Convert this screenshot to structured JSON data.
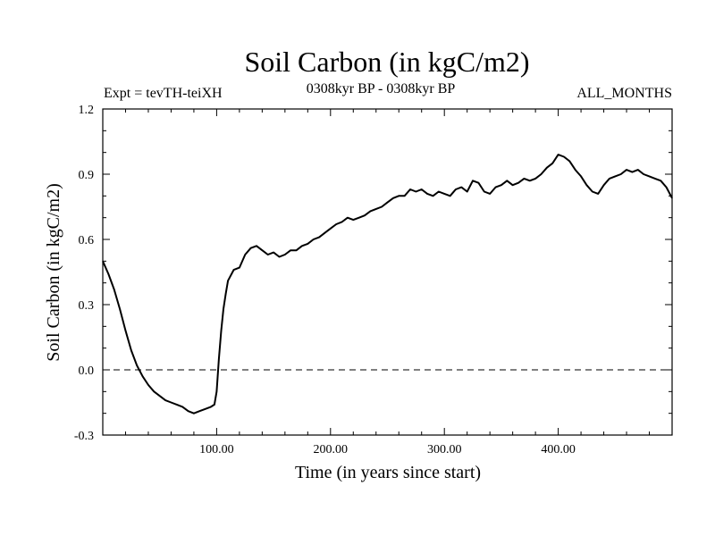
{
  "chart_data": {
    "type": "line",
    "title": "Soil Carbon (in kgC/m2)",
    "subtitle_left": "Expt = tevTH-teiXH",
    "subtitle_center": "0308kyr BP - 0308kyr BP",
    "subtitle_right": "ALL_MONTHS",
    "xlabel": "Time (in years since start)",
    "ylabel": "Soil Carbon (in kgC/m2)",
    "xlim": [
      0,
      500
    ],
    "ylim": [
      -0.3,
      1.2
    ],
    "x_ticks": [
      100,
      200,
      300,
      400
    ],
    "x_tick_labels": [
      "100.00",
      "200.00",
      "300.00",
      "400.00"
    ],
    "y_ticks": [
      -0.3,
      0.0,
      0.3,
      0.6,
      0.9,
      1.2
    ],
    "y_tick_labels": [
      "-0.3",
      "0.0",
      "0.3",
      "0.6",
      "0.9",
      "1.2"
    ],
    "zero_line": 0.0,
    "series": [
      {
        "name": "Soil Carbon",
        "color": "#000000",
        "x": [
          0,
          5,
          10,
          15,
          20,
          25,
          30,
          35,
          40,
          45,
          50,
          55,
          60,
          65,
          70,
          75,
          80,
          85,
          90,
          95,
          98,
          100,
          102,
          104,
          106,
          108,
          110,
          115,
          120,
          125,
          130,
          135,
          140,
          145,
          150,
          155,
          160,
          165,
          170,
          175,
          180,
          185,
          190,
          195,
          200,
          205,
          210,
          215,
          220,
          225,
          230,
          235,
          240,
          245,
          250,
          255,
          260,
          265,
          270,
          275,
          280,
          285,
          290,
          295,
          300,
          305,
          310,
          315,
          320,
          325,
          330,
          335,
          340,
          345,
          350,
          355,
          360,
          365,
          370,
          375,
          380,
          385,
          390,
          395,
          400,
          405,
          410,
          415,
          420,
          425,
          430,
          435,
          440,
          445,
          450,
          455,
          460,
          465,
          470,
          475,
          480,
          485,
          490,
          495,
          500
        ],
        "values": [
          0.5,
          0.44,
          0.37,
          0.28,
          0.18,
          0.09,
          0.02,
          -0.03,
          -0.07,
          -0.1,
          -0.12,
          -0.14,
          -0.15,
          -0.16,
          -0.17,
          -0.19,
          -0.2,
          -0.19,
          -0.18,
          -0.17,
          -0.16,
          -0.1,
          0.05,
          0.18,
          0.28,
          0.35,
          0.41,
          0.46,
          0.47,
          0.53,
          0.56,
          0.57,
          0.55,
          0.53,
          0.54,
          0.52,
          0.53,
          0.55,
          0.55,
          0.57,
          0.58,
          0.6,
          0.61,
          0.63,
          0.65,
          0.67,
          0.68,
          0.7,
          0.69,
          0.7,
          0.71,
          0.73,
          0.74,
          0.75,
          0.77,
          0.79,
          0.8,
          0.8,
          0.83,
          0.82,
          0.83,
          0.81,
          0.8,
          0.82,
          0.81,
          0.8,
          0.83,
          0.84,
          0.82,
          0.87,
          0.86,
          0.82,
          0.81,
          0.84,
          0.85,
          0.87,
          0.85,
          0.86,
          0.88,
          0.87,
          0.88,
          0.9,
          0.93,
          0.95,
          0.99,
          0.98,
          0.96,
          0.92,
          0.89,
          0.85,
          0.82,
          0.81,
          0.85,
          0.88,
          0.89,
          0.9,
          0.92,
          0.91,
          0.92,
          0.9,
          0.89,
          0.88,
          0.87,
          0.84,
          0.79
        ]
      }
    ]
  }
}
